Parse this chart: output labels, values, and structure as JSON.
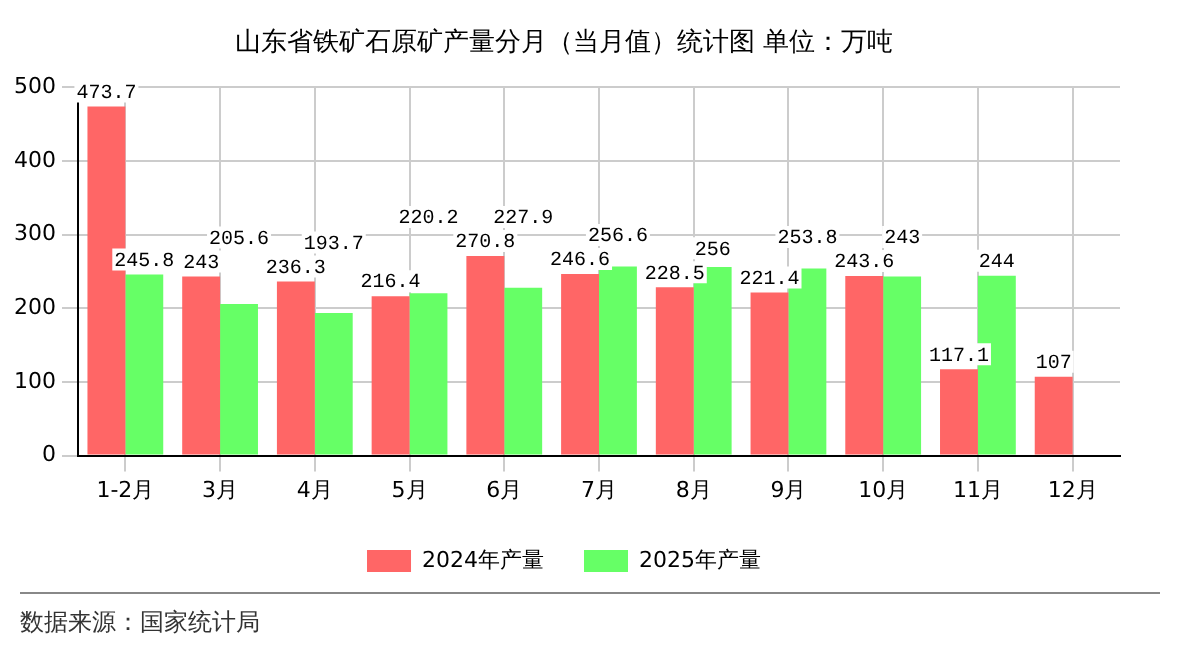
{
  "chart_data": {
    "type": "bar",
    "title": "山东省铁矿石原矿产量分月（当月值）统计图 单位：万吨",
    "categories": [
      "1-2月",
      "3月",
      "4月",
      "5月",
      "6月",
      "7月",
      "8月",
      "9月",
      "10月",
      "11月",
      "12月"
    ],
    "series": [
      {
        "name": "2024年产量",
        "color": "#ff6666",
        "values": [
          473.7,
          243,
          236.3,
          216.4,
          270.8,
          246.6,
          228.5,
          221.4,
          243.6,
          117.1,
          107
        ]
      },
      {
        "name": "2025年产量",
        "color": "#66ff66",
        "values": [
          245.8,
          205.6,
          193.7,
          220.2,
          227.9,
          256.6,
          256,
          253.8,
          243,
          244,
          null
        ]
      }
    ],
    "ylim": [
      0,
      500
    ],
    "yticks": [
      0,
      100,
      200,
      300,
      400,
      500
    ],
    "grid": true,
    "legend": "bottom",
    "data_labels": true,
    "annotations": [
      "数据来源：国家统计局"
    ]
  }
}
